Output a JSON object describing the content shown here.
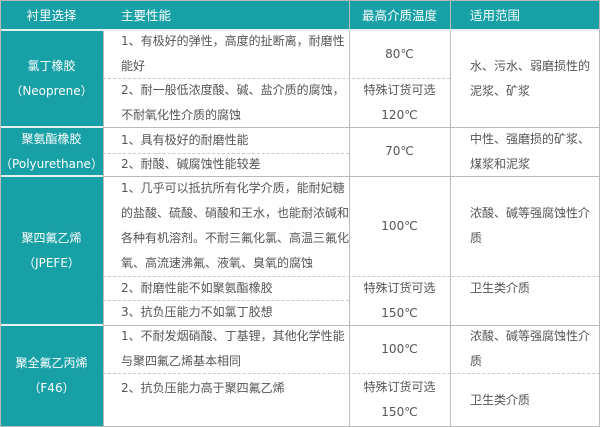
{
  "headers": [
    "衬里选择",
    "主要性能",
    "最高介质温度",
    "适用范围"
  ],
  "colors": {
    "header_bg": "#17a0a6",
    "header_text": "#ffffff",
    "text": "#555555",
    "border": "#bbbbbb"
  },
  "rows": [
    {
      "lining": "氯丁橡胶",
      "lining_en": "（Neoprene）",
      "props": [
        "1、有极好的弹性，高度的扯断离，耐磨性能好",
        "2、耐一般低浓度酸、碱、盐介质的腐蚀，不耐氧化性介质的腐蚀"
      ],
      "temps": [
        "80℃",
        "特殊订货可选",
        "120℃"
      ],
      "scope": [
        "水、污水、弱磨损性的泥浆、矿浆"
      ]
    },
    {
      "lining": "聚氨酯橡胶",
      "lining_en": "（Polyurethane）",
      "props": [
        "1、具有极好的耐磨性能",
        "2、耐酸、碱腐蚀性能较差"
      ],
      "temps": [
        "70℃"
      ],
      "scope": [
        "中性、强磨损的矿浆、煤浆和泥浆"
      ]
    },
    {
      "lining": "聚四氟乙烯",
      "lining_en": "（JPEFE）",
      "props": [
        "1、几乎可以抵抗所有化学介质，能耐妃糖的盐酸、硫酸、硝酸和王水，也能耐浓碱和各种有机溶剂。不耐三氟化氯、高温三氟化氧、高流速沸氟、液氧、臭氧的腐蚀",
        "2、耐磨性能不如聚氨酯橡胶",
        "3、抗负压能力不如氯丁胶想"
      ],
      "temps": [
        "100℃",
        "特殊订货可选",
        "150℃"
      ],
      "scope": [
        "浓酸、碱等强腐蚀性介质",
        "卫生类介质"
      ]
    },
    {
      "lining": "聚全氟乙丙烯",
      "lining_en": "（F46）",
      "props": [
        "1、不耐发烟硝酸、丁基锂，其他化学性能与聚四氟乙烯基本相同",
        "2、抗负压能力高于聚四氟乙烯"
      ],
      "temps": [
        "100℃",
        "特殊订货可选",
        "150℃"
      ],
      "scope": [
        "浓酸、碱等强腐蚀性介质",
        "卫生类介质"
      ]
    }
  ]
}
